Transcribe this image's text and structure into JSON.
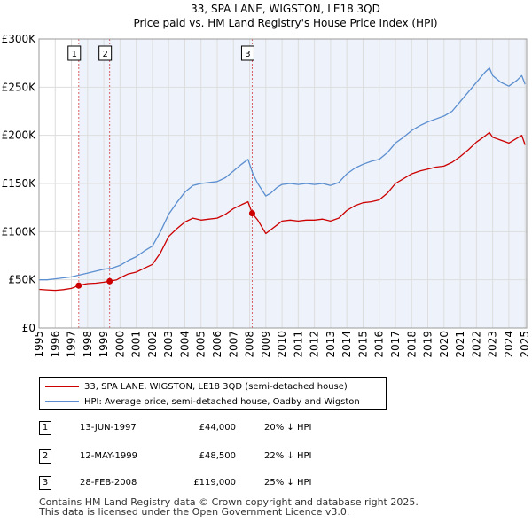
{
  "chart_data": {
    "type": "line",
    "title": "33, SPA LANE, WIGSTON, LE18 3QD",
    "subtitle": "Price paid vs. HM Land Registry's House Price Index (HPI)",
    "xlim": [
      1995,
      2025.1
    ],
    "ylim": [
      0,
      300000
    ],
    "x_ticks": [
      1995,
      1996,
      1997,
      1998,
      1999,
      2000,
      2001,
      2002,
      2003,
      2004,
      2005,
      2006,
      2007,
      2008,
      2009,
      2010,
      2011,
      2012,
      2013,
      2014,
      2015,
      2016,
      2017,
      2018,
      2019,
      2020,
      2021,
      2022,
      2023,
      2024,
      2025
    ],
    "y_ticks": [
      {
        "value": 0,
        "label": "£0"
      },
      {
        "value": 50000,
        "label": "£50K"
      },
      {
        "value": 100000,
        "label": "£100K"
      },
      {
        "value": 150000,
        "label": "£150K"
      },
      {
        "value": 200000,
        "label": "£200K"
      },
      {
        "value": 250000,
        "label": "£250K"
      },
      {
        "value": 300000,
        "label": "£300K"
      }
    ],
    "grid": true,
    "colors": {
      "property": "#cc0000",
      "hpi": "#5b8fd0",
      "shade": "#eef2fb",
      "marker_line": "#cc0000"
    },
    "series": [
      {
        "name": "33, SPA LANE, WIGSTON, LE18 3QD (semi-detached house)",
        "key": "property",
        "x": [
          1995,
          1995.5,
          1996,
          1996.5,
          1997,
          1997.45,
          1997.8,
          1998,
          1998.5,
          1999,
          1999.36,
          1999.8,
          2000,
          2000.5,
          2001,
          2001.5,
          2002,
          2002.5,
          2003,
          2003.5,
          2004,
          2004.5,
          2005,
          2005.5,
          2006,
          2006.5,
          2007,
          2007.5,
          2007.9,
          2008.16,
          2008.5,
          2009,
          2009.3,
          2009.7,
          2010,
          2010.5,
          2011,
          2011.5,
          2012,
          2012.5,
          2013,
          2013.5,
          2014,
          2014.5,
          2015,
          2015.5,
          2016,
          2016.5,
          2017,
          2017.5,
          2018,
          2018.5,
          2019,
          2019.5,
          2020,
          2020.5,
          2021,
          2021.5,
          2022,
          2022.5,
          2022.8,
          2023,
          2023.5,
          2024,
          2024.5,
          2024.8,
          2025
        ],
        "y": [
          40000,
          39500,
          39000,
          39800,
          41000,
          44000,
          45500,
          46000,
          46500,
          47500,
          48500,
          50000,
          52000,
          56000,
          58000,
          62000,
          66000,
          78000,
          95000,
          103000,
          110000,
          114000,
          112000,
          113000,
          114000,
          118000,
          124000,
          128000,
          131000,
          119000,
          112000,
          98000,
          102000,
          107000,
          111000,
          112000,
          111000,
          112000,
          112000,
          113000,
          111000,
          114000,
          122000,
          127000,
          130000,
          131000,
          133000,
          140000,
          150000,
          155000,
          160000,
          163000,
          165000,
          167000,
          168000,
          172000,
          178000,
          185000,
          193000,
          199000,
          203000,
          198000,
          195000,
          192000,
          197000,
          200000,
          190000
        ]
      },
      {
        "name": "HPI: Average price, semi-detached house, Oadby and Wigston",
        "key": "hpi",
        "x": [
          1995,
          1995.5,
          1996,
          1996.5,
          1997,
          1997.5,
          1998,
          1998.5,
          1999,
          1999.5,
          2000,
          2000.5,
          2001,
          2001.5,
          2002,
          2002.5,
          2003,
          2003.5,
          2004,
          2004.5,
          2005,
          2005.5,
          2006,
          2006.5,
          2007,
          2007.5,
          2007.9,
          2008.2,
          2008.5,
          2009,
          2009.3,
          2009.7,
          2010,
          2010.5,
          2011,
          2011.5,
          2012,
          2012.5,
          2013,
          2013.5,
          2014,
          2014.5,
          2015,
          2015.5,
          2016,
          2016.5,
          2017,
          2017.5,
          2018,
          2018.5,
          2019,
          2019.5,
          2020,
          2020.5,
          2021,
          2021.5,
          2022,
          2022.5,
          2022.8,
          2023,
          2023.5,
          2024,
          2024.5,
          2024.8,
          2025
        ],
        "y": [
          50000,
          50000,
          51000,
          52000,
          53000,
          55000,
          57000,
          59000,
          61000,
          62000,
          65000,
          70000,
          74000,
          80000,
          85000,
          100000,
          118000,
          130000,
          141000,
          148000,
          150000,
          151000,
          152000,
          156000,
          163000,
          170000,
          175000,
          160000,
          150000,
          137000,
          140000,
          146000,
          149000,
          150000,
          149000,
          150000,
          149000,
          150000,
          148000,
          151000,
          160000,
          166000,
          170000,
          173000,
          175000,
          182000,
          192000,
          198000,
          205000,
          210000,
          214000,
          217000,
          220000,
          225000,
          235000,
          245000,
          255000,
          265000,
          270000,
          262000,
          255000,
          251000,
          257000,
          262000,
          253000
        ]
      }
    ],
    "transactions": [
      {
        "index": "1",
        "marker": "1",
        "date": "13-JUN-1997",
        "year": 1997.45,
        "value": 44000,
        "price": "£44,000",
        "hpi": "20% ↓ HPI"
      },
      {
        "index": "2",
        "marker": "2",
        "date": "12-MAY-1999",
        "year": 1999.36,
        "value": 48500,
        "price": "£48,500",
        "hpi": "22% ↓ HPI"
      },
      {
        "index": "3",
        "marker": "3",
        "date": "28-FEB-2008",
        "year": 2008.16,
        "value": 119000,
        "price": "£119,000",
        "hpi": "25% ↓ HPI"
      }
    ]
  },
  "legend": {
    "property_label": "33, SPA LANE, WIGSTON, LE18 3QD (semi-detached house)",
    "hpi_label": "HPI: Average price, semi-detached house, Oadby and Wigston"
  },
  "footer": {
    "line1": "Contains HM Land Registry data © Crown copyright and database right 2025.",
    "line2": "This data is licensed under the Open Government Licence v3.0."
  }
}
